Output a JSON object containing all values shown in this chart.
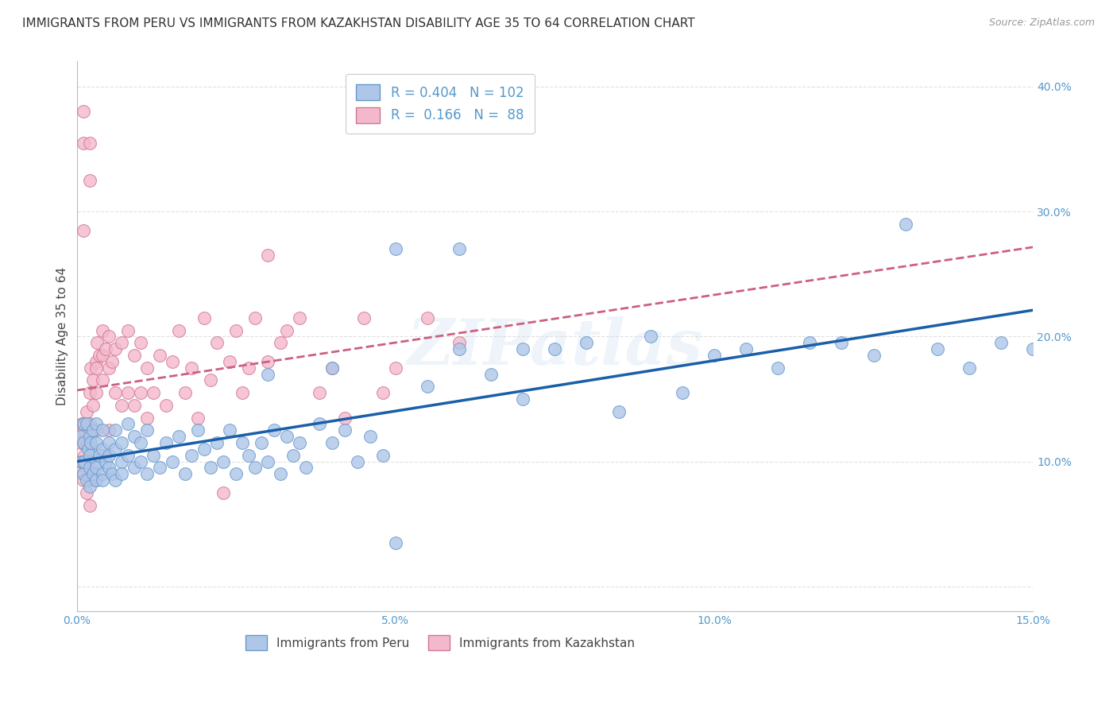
{
  "title": "IMMIGRANTS FROM PERU VS IMMIGRANTS FROM KAZAKHSTAN DISABILITY AGE 35 TO 64 CORRELATION CHART",
  "source": "Source: ZipAtlas.com",
  "ylabel": "Disability Age 35 to 64",
  "xlim": [
    0.0,
    0.15
  ],
  "ylim": [
    -0.02,
    0.42
  ],
  "xticks": [
    0.0,
    0.05,
    0.1,
    0.15
  ],
  "xticklabels": [
    "0.0%",
    "5.0%",
    "10.0%",
    "15.0%"
  ],
  "yticks": [
    0.0,
    0.1,
    0.2,
    0.3,
    0.4
  ],
  "yticklabels": [
    "",
    "10.0%",
    "20.0%",
    "30.0%",
    "40.0%"
  ],
  "peru_color": "#aec6e8",
  "peru_edge": "#6699cc",
  "peru_line": "#1a5fa8",
  "kaz_color": "#f4b8cc",
  "kaz_edge": "#d07890",
  "kaz_line": "#cc6080",
  "R_peru": 0.404,
  "N_peru": 102,
  "R_kaz": 0.166,
  "N_kaz": 88,
  "watermark": "ZIPatlas",
  "background": "#ffffff",
  "grid_color": "#e0e0e0",
  "title_fontsize": 11,
  "axis_label_fontsize": 11,
  "tick_fontsize": 10,
  "legend_fontsize": 12,
  "source_fontsize": 9,
  "peru_x": [
    0.0005,
    0.0008,
    0.001,
    0.001,
    0.001,
    0.0012,
    0.0015,
    0.0015,
    0.0018,
    0.002,
    0.002,
    0.002,
    0.002,
    0.0022,
    0.0025,
    0.0025,
    0.003,
    0.003,
    0.003,
    0.003,
    0.003,
    0.0035,
    0.004,
    0.004,
    0.004,
    0.004,
    0.0045,
    0.005,
    0.005,
    0.005,
    0.0055,
    0.006,
    0.006,
    0.006,
    0.007,
    0.007,
    0.007,
    0.008,
    0.008,
    0.009,
    0.009,
    0.01,
    0.01,
    0.011,
    0.011,
    0.012,
    0.013,
    0.014,
    0.015,
    0.016,
    0.017,
    0.018,
    0.019,
    0.02,
    0.021,
    0.022,
    0.023,
    0.024,
    0.025,
    0.026,
    0.027,
    0.028,
    0.029,
    0.03,
    0.031,
    0.032,
    0.033,
    0.034,
    0.035,
    0.036,
    0.038,
    0.04,
    0.042,
    0.044,
    0.046,
    0.048,
    0.05,
    0.055,
    0.06,
    0.065,
    0.07,
    0.075,
    0.08,
    0.085,
    0.09,
    0.095,
    0.1,
    0.105,
    0.11,
    0.115,
    0.12,
    0.125,
    0.13,
    0.135,
    0.14,
    0.145,
    0.15,
    0.05,
    0.06,
    0.07,
    0.04,
    0.03
  ],
  "peru_y": [
    0.12,
    0.1,
    0.09,
    0.13,
    0.115,
    0.1,
    0.085,
    0.13,
    0.11,
    0.095,
    0.105,
    0.12,
    0.08,
    0.115,
    0.09,
    0.125,
    0.1,
    0.095,
    0.085,
    0.115,
    0.13,
    0.105,
    0.11,
    0.09,
    0.125,
    0.085,
    0.1,
    0.095,
    0.115,
    0.105,
    0.09,
    0.11,
    0.125,
    0.085,
    0.1,
    0.115,
    0.09,
    0.105,
    0.13,
    0.095,
    0.12,
    0.1,
    0.115,
    0.09,
    0.125,
    0.105,
    0.095,
    0.115,
    0.1,
    0.12,
    0.09,
    0.105,
    0.125,
    0.11,
    0.095,
    0.115,
    0.1,
    0.125,
    0.09,
    0.115,
    0.105,
    0.095,
    0.115,
    0.1,
    0.125,
    0.09,
    0.12,
    0.105,
    0.115,
    0.095,
    0.13,
    0.115,
    0.125,
    0.1,
    0.12,
    0.105,
    0.035,
    0.16,
    0.19,
    0.17,
    0.15,
    0.19,
    0.195,
    0.14,
    0.2,
    0.155,
    0.185,
    0.19,
    0.175,
    0.195,
    0.195,
    0.185,
    0.29,
    0.19,
    0.175,
    0.195,
    0.19,
    0.27,
    0.27,
    0.19,
    0.175,
    0.17
  ],
  "kaz_x": [
    0.0003,
    0.0005,
    0.0005,
    0.0008,
    0.001,
    0.001,
    0.001,
    0.001,
    0.001,
    0.0012,
    0.0012,
    0.0015,
    0.0015,
    0.0015,
    0.0015,
    0.0018,
    0.002,
    0.002,
    0.002,
    0.002,
    0.002,
    0.002,
    0.0022,
    0.0025,
    0.0025,
    0.003,
    0.003,
    0.003,
    0.003,
    0.003,
    0.0032,
    0.0035,
    0.004,
    0.004,
    0.004,
    0.004,
    0.0045,
    0.005,
    0.005,
    0.005,
    0.0055,
    0.006,
    0.006,
    0.007,
    0.007,
    0.008,
    0.008,
    0.009,
    0.009,
    0.01,
    0.01,
    0.011,
    0.011,
    0.012,
    0.013,
    0.014,
    0.015,
    0.016,
    0.017,
    0.018,
    0.019,
    0.02,
    0.021,
    0.022,
    0.023,
    0.024,
    0.025,
    0.026,
    0.027,
    0.028,
    0.03,
    0.03,
    0.032,
    0.033,
    0.035,
    0.038,
    0.04,
    0.042,
    0.045,
    0.048,
    0.05,
    0.055,
    0.06,
    0.002,
    0.001,
    0.001,
    0.002,
    0.001
  ],
  "kaz_y": [
    0.125,
    0.115,
    0.1,
    0.13,
    0.1,
    0.115,
    0.09,
    0.085,
    0.13,
    0.105,
    0.125,
    0.14,
    0.115,
    0.095,
    0.075,
    0.1,
    0.155,
    0.13,
    0.115,
    0.1,
    0.085,
    0.065,
    0.175,
    0.165,
    0.145,
    0.18,
    0.155,
    0.175,
    0.125,
    0.085,
    0.195,
    0.185,
    0.205,
    0.185,
    0.165,
    0.105,
    0.19,
    0.2,
    0.175,
    0.125,
    0.18,
    0.19,
    0.155,
    0.195,
    0.145,
    0.205,
    0.155,
    0.185,
    0.145,
    0.195,
    0.155,
    0.175,
    0.135,
    0.155,
    0.185,
    0.145,
    0.18,
    0.205,
    0.155,
    0.175,
    0.135,
    0.215,
    0.165,
    0.195,
    0.075,
    0.18,
    0.205,
    0.155,
    0.175,
    0.215,
    0.265,
    0.18,
    0.195,
    0.205,
    0.215,
    0.155,
    0.175,
    0.135,
    0.215,
    0.155,
    0.175,
    0.215,
    0.195,
    0.325,
    0.355,
    0.285,
    0.355,
    0.38
  ]
}
